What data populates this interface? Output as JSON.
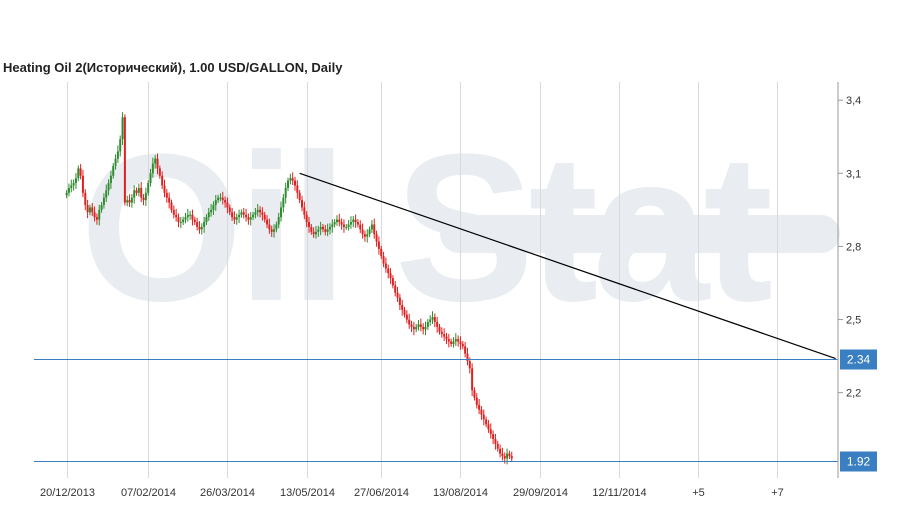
{
  "chart_data": {
    "type": "candlestick",
    "title": "Heating Oil 2(Исторический), 1.00 USD/GALLON, Daily",
    "ylim": [
      1.85,
      3.45
    ],
    "y_ticks": [
      {
        "label": "3,4",
        "value": 3.4
      },
      {
        "label": "3,1",
        "value": 3.1
      },
      {
        "label": "2,8",
        "value": 2.8
      },
      {
        "label": "2,5",
        "value": 2.5
      },
      {
        "label": "2,2",
        "value": 2.2
      }
    ],
    "x_ticks": [
      {
        "label": "20/12/2013",
        "index": 0
      },
      {
        "label": "07/02/2014",
        "index": 35
      },
      {
        "label": "26/03/2014",
        "index": 69
      },
      {
        "label": "13/05/2014",
        "index": 103
      },
      {
        "label": "27/06/2014",
        "index": 135
      },
      {
        "label": "13/08/2014",
        "index": 169
      },
      {
        "label": "29/09/2014",
        "index": 203
      },
      {
        "label": "12/11/2014",
        "index": 237
      },
      {
        "label": "+5",
        "index": 271
      },
      {
        "label": "+7",
        "index": 305
      }
    ],
    "x_range": [
      -14,
      331
    ],
    "closes": [
      3.02,
      3.04,
      3.05,
      3.06,
      3.08,
      3.12,
      3.09,
      3.02,
      2.97,
      2.94,
      2.96,
      2.94,
      2.92,
      2.91,
      2.95,
      2.97,
      3.0,
      3.03,
      3.06,
      3.09,
      3.13,
      3.16,
      3.19,
      3.24,
      3.33,
      2.98,
      2.99,
      2.98,
      3.0,
      3.03,
      3.02,
      3.04,
      3.0,
      2.99,
      3.02,
      3.06,
      3.1,
      3.14,
      3.16,
      3.12,
      3.09,
      3.05,
      3.02,
      3.0,
      2.98,
      2.95,
      2.93,
      2.92,
      2.9,
      2.9,
      2.91,
      2.92,
      2.93,
      2.93,
      2.91,
      2.9,
      2.88,
      2.87,
      2.88,
      2.9,
      2.92,
      2.94,
      2.95,
      2.97,
      2.99,
      3.0,
      3.0,
      2.99,
      2.98,
      2.96,
      2.94,
      2.92,
      2.91,
      2.92,
      2.93,
      2.94,
      2.93,
      2.92,
      2.91,
      2.92,
      2.93,
      2.94,
      2.95,
      2.94,
      2.93,
      2.91,
      2.89,
      2.87,
      2.86,
      2.87,
      2.89,
      2.92,
      2.96,
      3.0,
      3.04,
      3.07,
      3.08,
      3.07,
      3.05,
      3.02,
      2.99,
      2.96,
      2.93,
      2.9,
      2.88,
      2.86,
      2.85,
      2.86,
      2.87,
      2.88,
      2.87,
      2.86,
      2.87,
      2.88,
      2.89,
      2.9,
      2.91,
      2.9,
      2.89,
      2.88,
      2.88,
      2.89,
      2.9,
      2.91,
      2.9,
      2.89,
      2.87,
      2.85,
      2.84,
      2.85,
      2.87,
      2.89,
      2.85,
      2.82,
      2.79,
      2.76,
      2.73,
      2.71,
      2.69,
      2.67,
      2.64,
      2.61,
      2.59,
      2.56,
      2.54,
      2.52,
      2.5,
      2.48,
      2.47,
      2.46,
      2.47,
      2.48,
      2.47,
      2.46,
      2.47,
      2.49,
      2.5,
      2.51,
      2.49,
      2.47,
      2.45,
      2.44,
      2.43,
      2.42,
      2.41,
      2.4,
      2.41,
      2.42,
      2.41,
      2.4,
      2.39,
      2.36,
      2.33,
      2.3,
      2.21,
      2.18,
      2.15,
      2.13,
      2.11,
      2.09,
      2.07,
      2.05,
      2.03,
      2.01,
      1.99,
      1.97,
      1.95,
      1.94,
      1.93,
      1.95,
      1.94,
      1.93
    ],
    "trend_line": {
      "from": {
        "index": 100,
        "value": 3.1
      },
      "to": {
        "index": 330,
        "value": 2.34
      }
    },
    "levels": [
      {
        "label": "2.34",
        "value": 2.34
      },
      {
        "label": "1.92",
        "value": 1.92
      }
    ],
    "colors": {
      "up": "#2e8b2e",
      "down": "#e02020",
      "level_line": "#3a7fc1",
      "level_label_bg": "#3a7fc1",
      "trend_line": "#000000",
      "grid": "#d9d9d9",
      "watermark": "#e9edf1"
    },
    "grid": true,
    "watermark_text": "Oil Stat"
  }
}
